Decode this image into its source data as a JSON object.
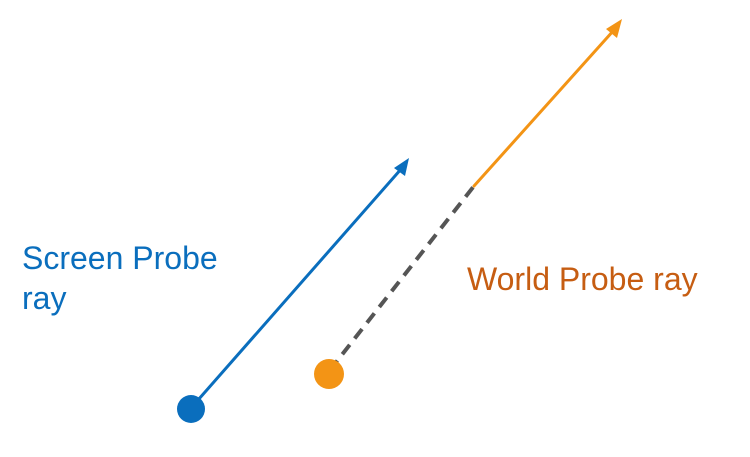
{
  "diagram": {
    "screen_probe": {
      "label_line1": "Screen Probe",
      "label_line2": "ray",
      "color": "#0a6ebd"
    },
    "world_probe": {
      "label": "World Probe ray",
      "color": "#f39415",
      "label_color": "#c65d12",
      "dash_color": "#555555"
    }
  }
}
